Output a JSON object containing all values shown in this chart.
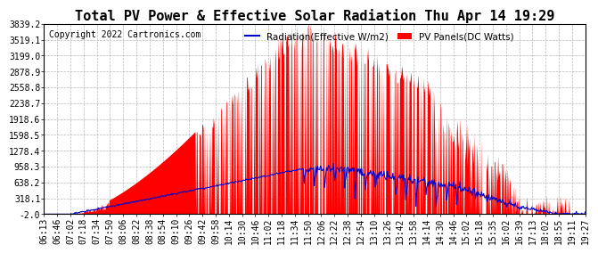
{
  "title": "Total PV Power & Effective Solar Radiation Thu Apr 14 19:29",
  "copyright": "Copyright 2022 Cartronics.com",
  "legend_radiation": "Radiation(Effective W/m2)",
  "legend_pv": "PV Panels(DC Watts)",
  "yticks": [
    3839.2,
    3519.1,
    3199.0,
    2878.9,
    2558.8,
    2238.7,
    1918.6,
    1598.5,
    1278.4,
    958.3,
    638.2,
    318.1,
    -2.0
  ],
  "ymin": -2.0,
  "ymax": 3839.2,
  "background_color": "#ffffff",
  "plot_bg_color": "#ffffff",
  "grid_color": "#b0b0b0",
  "radiation_color": "#0000cc",
  "pv_color": "#ff0000",
  "pv_fill_color": "#ff0000",
  "title_fontsize": 11,
  "copyright_fontsize": 7,
  "tick_fontsize": 7,
  "xtick_labels": [
    "06:13",
    "06:46",
    "07:02",
    "07:18",
    "07:34",
    "07:50",
    "08:06",
    "08:22",
    "08:38",
    "08:54",
    "09:10",
    "09:26",
    "09:42",
    "09:58",
    "10:14",
    "10:30",
    "10:46",
    "11:02",
    "11:18",
    "11:34",
    "11:50",
    "12:06",
    "12:22",
    "12:38",
    "12:54",
    "13:10",
    "13:26",
    "13:42",
    "13:58",
    "14:14",
    "14:30",
    "14:46",
    "15:02",
    "15:18",
    "15:35",
    "16:02",
    "16:39",
    "17:13",
    "18:02",
    "18:55",
    "19:11",
    "19:27"
  ]
}
